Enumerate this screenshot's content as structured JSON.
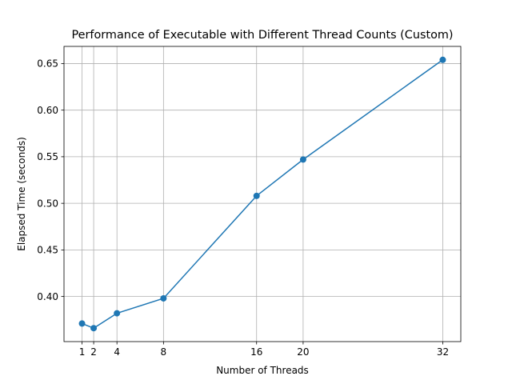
{
  "chart_data": {
    "type": "line",
    "title": "Performance of Executable with Different Thread Counts (Custom)",
    "xlabel": "Number of Threads",
    "ylabel": "Elapsed Time (seconds)",
    "x": [
      1,
      2,
      4,
      8,
      16,
      20,
      32
    ],
    "series": [
      {
        "values": [
          0.371,
          0.366,
          0.382,
          0.398,
          0.508,
          0.547,
          0.654
        ],
        "color": "#1f77b4",
        "marker": "circle"
      }
    ],
    "xticks": [
      1,
      2,
      4,
      8,
      16,
      20,
      32
    ],
    "xtick_labels": [
      "1",
      "2",
      "4",
      "8",
      "16",
      "20",
      "32"
    ],
    "yticks": [
      0.4,
      0.45,
      0.5,
      0.55,
      0.6,
      0.65
    ],
    "ytick_labels": [
      "0.40",
      "0.45",
      "0.50",
      "0.55",
      "0.60",
      "0.65"
    ],
    "xlim": [
      -0.55,
      33.55
    ],
    "ylim": [
      0.3516,
      0.6684
    ],
    "grid": true,
    "legend": "none"
  }
}
